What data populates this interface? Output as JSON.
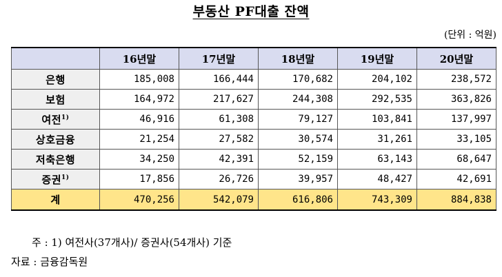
{
  "title": "부동산 PF대출 잔액",
  "unit": "(단위 : 억원)",
  "header": [
    "",
    "16년말",
    "17년말",
    "18년말",
    "19년말",
    "20년말"
  ],
  "rows": [
    {
      "label": "은행",
      "sup": "",
      "values": [
        "185,008",
        "166,444",
        "170,682",
        "204,102",
        "238,572"
      ]
    },
    {
      "label": "보험",
      "sup": "",
      "values": [
        "164,972",
        "217,627",
        "244,308",
        "292,535",
        "363,826"
      ]
    },
    {
      "label": "여전",
      "sup": "1)",
      "values": [
        "46,916",
        "61,308",
        "79,127",
        "103,841",
        "137,997"
      ]
    },
    {
      "label": "상호금융",
      "sup": "",
      "values": [
        "21,254",
        "27,582",
        "30,574",
        "31,261",
        "33,105"
      ]
    },
    {
      "label": "저축은행",
      "sup": "",
      "values": [
        "34,250",
        "42,391",
        "52,159",
        "63,143",
        "68,647"
      ]
    },
    {
      "label": "증권",
      "sup": "1)",
      "values": [
        "17,856",
        "26,726",
        "39,957",
        "48,427",
        "42,691"
      ]
    }
  ],
  "total": {
    "label": "계",
    "values": [
      "470,256",
      "542,079",
      "616,806",
      "743,309",
      "884,838"
    ]
  },
  "note": "주 : 1) 여전사(37개사)/ 증권사(54개사) 기준",
  "source": "자료 : 금융감독원",
  "colors": {
    "header_bg": "#d9dcf0",
    "label_bg": "#efefef",
    "total_bg": "#ffe58a"
  }
}
